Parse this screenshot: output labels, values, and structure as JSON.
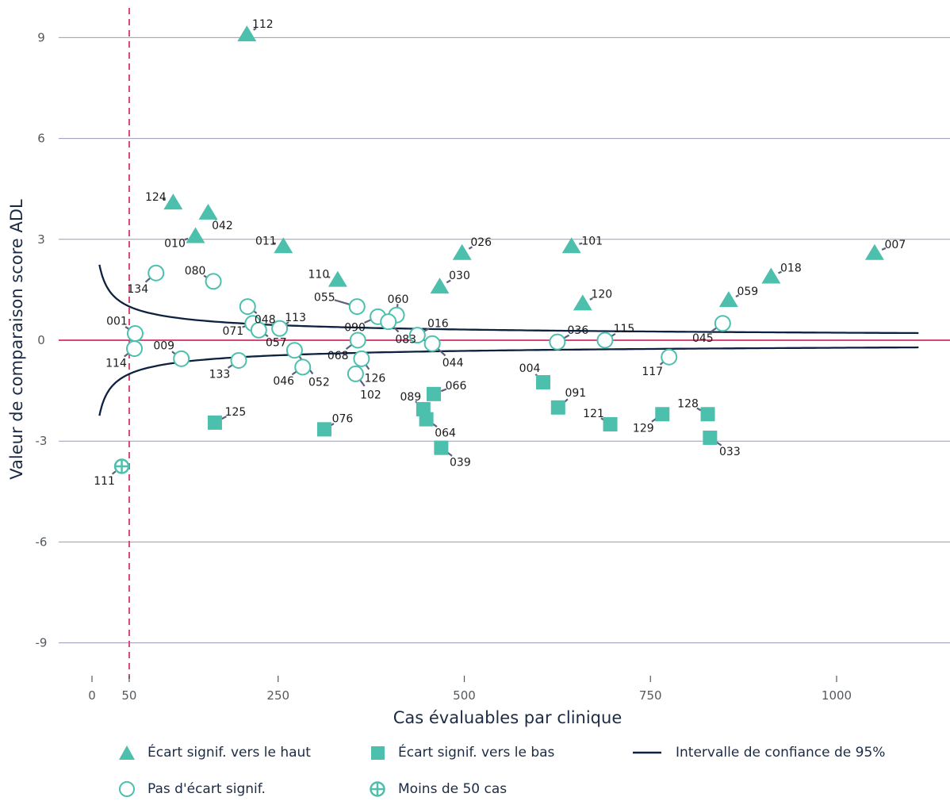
{
  "chart_data": {
    "type": "scatter",
    "xlabel": "Cas évaluables par clinique",
    "ylabel": "Valeur de comparaison score ADL",
    "xlim": [
      -10,
      1230
    ],
    "ylim": [
      -10,
      10
    ],
    "x_ticks": [
      0,
      50,
      250,
      500,
      750,
      1000
    ],
    "x_tick_labels": [
      "0",
      "50",
      "250",
      "500",
      "750",
      "1000"
    ],
    "y_ticks": [
      9,
      6,
      3,
      0,
      -3,
      -6,
      -9
    ],
    "y_tick_labels": [
      "9",
      "6",
      "3",
      "0",
      "-3",
      "-6",
      "-9"
    ],
    "grid": "horizontal",
    "reference_lines": {
      "zero_line_y": 0,
      "threshold_x": 50
    },
    "confidence_interval": {
      "z": 7.1,
      "x_start": 10,
      "x_end": 1110
    },
    "legend_position": "bottom",
    "colors": {
      "teal": "#4dbfad",
      "navy": "#0d2240",
      "pink": "#d6477a",
      "grid": "#9b9ab4"
    },
    "series": [
      {
        "name": "Écart signif. vers le haut",
        "marker": "triangle",
        "points": [
          {
            "label": "112",
            "x": 208,
            "y": 9.1
          },
          {
            "label": "124",
            "x": 109,
            "y": 4.1
          },
          {
            "label": "042",
            "x": 156,
            "y": 3.8
          },
          {
            "label": "010",
            "x": 139,
            "y": 3.1
          },
          {
            "label": "011",
            "x": 257,
            "y": 2.8
          },
          {
            "label": "110",
            "x": 330,
            "y": 1.8
          },
          {
            "label": "026",
            "x": 497,
            "y": 2.6
          },
          {
            "label": "030",
            "x": 467,
            "y": 1.6
          },
          {
            "label": "101",
            "x": 644,
            "y": 2.8
          },
          {
            "label": "120",
            "x": 659,
            "y": 1.1
          },
          {
            "label": "007",
            "x": 1051,
            "y": 2.6
          },
          {
            "label": "018",
            "x": 912,
            "y": 1.9
          },
          {
            "label": "059",
            "x": 855,
            "y": 1.2
          }
        ]
      },
      {
        "name": "Écart signif. vers le bas",
        "marker": "square",
        "points": [
          {
            "label": "125",
            "x": 165,
            "y": -2.45
          },
          {
            "label": "076",
            "x": 312,
            "y": -2.65
          },
          {
            "label": "066",
            "x": 459,
            "y": -1.6
          },
          {
            "label": "089",
            "x": 445,
            "y": -2.05
          },
          {
            "label": "064",
            "x": 449,
            "y": -2.35
          },
          {
            "label": "039",
            "x": 469,
            "y": -3.2
          },
          {
            "label": "004",
            "x": 606,
            "y": -1.25
          },
          {
            "label": "091",
            "x": 626,
            "y": -2.0
          },
          {
            "label": "121",
            "x": 696,
            "y": -2.5
          },
          {
            "label": "129",
            "x": 766,
            "y": -2.2
          },
          {
            "label": "128",
            "x": 827,
            "y": -2.2
          },
          {
            "label": "033",
            "x": 830,
            "y": -2.9
          }
        ]
      },
      {
        "name": "Pas d'écart signif.",
        "marker": "circle",
        "points": [
          {
            "label": "134",
            "x": 86,
            "y": 2.0
          },
          {
            "label": "080",
            "x": 163,
            "y": 1.75
          },
          {
            "label": "048",
            "x": 209,
            "y": 1.0
          },
          {
            "label": "071",
            "x": 216,
            "y": 0.5
          },
          {
            "label": "057",
            "x": 224,
            "y": 0.3
          },
          {
            "label": "113",
            "x": 252,
            "y": 0.35
          },
          {
            "label": "055",
            "x": 356,
            "y": 1.0
          },
          {
            "label": "060",
            "x": 409,
            "y": 0.75
          },
          {
            "label": "090",
            "x": 384,
            "y": 0.7
          },
          {
            "label": "016",
            "x": 437,
            "y": 0.15
          },
          {
            "label": "083",
            "x": 398,
            "y": 0.55
          },
          {
            "label": "044",
            "x": 457,
            "y": -0.1
          },
          {
            "label": "068",
            "x": 357,
            "y": 0.0
          },
          {
            "label": "126",
            "x": 362,
            "y": -0.55
          },
          {
            "label": "102",
            "x": 354,
            "y": -1.0
          },
          {
            "label": "046",
            "x": 283,
            "y": -0.8
          },
          {
            "label": "052",
            "x": 272,
            "y": -0.3
          },
          {
            "label": "133",
            "x": 197,
            "y": -0.6
          },
          {
            "label": "009",
            "x": 120,
            "y": -0.55
          },
          {
            "label": "001",
            "x": 58,
            "y": 0.2
          },
          {
            "label": "114",
            "x": 57,
            "y": -0.25
          },
          {
            "label": "036",
            "x": 625,
            "y": -0.05
          },
          {
            "label": "115",
            "x": 689,
            "y": 0.0
          },
          {
            "label": "045",
            "x": 847,
            "y": 0.5
          },
          {
            "label": "117",
            "x": 775,
            "y": -0.5
          }
        ]
      },
      {
        "name": "Moins de 50 cas",
        "marker": "crosscircle",
        "points": [
          {
            "label": "111",
            "x": 40,
            "y": -3.75
          }
        ]
      }
    ],
    "ci_legend_label": "Intervalle de confiance de 95%"
  }
}
